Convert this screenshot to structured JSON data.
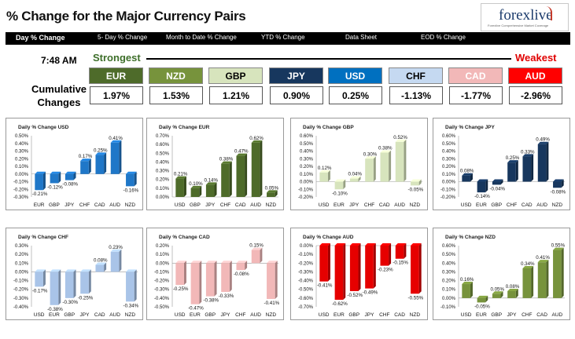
{
  "header": {
    "title": "% Change for the Major Currency Pairs",
    "logo_text": "forexlive",
    "logo_tagline": "Forexlive Comprehensive Market Coverage"
  },
  "tabs": [
    {
      "label": "Day % Change",
      "active": true
    },
    {
      "label": "5- Day % Change",
      "active": false
    },
    {
      "label": "Month to Date % Change",
      "active": false
    },
    {
      "label": "YTD % Change",
      "active": false
    },
    {
      "label": "Data Sheet",
      "active": false
    },
    {
      "label": "EOD % Change",
      "active": false
    }
  ],
  "summary": {
    "time": "7:48 AM",
    "cumulative_label_1": "Cumulative",
    "cumulative_label_2": "Changes",
    "strongest_label": "Strongest",
    "weakest_label": "Weakest",
    "rank": [
      {
        "code": "EUR",
        "value": "1.97%",
        "bg": "#4e6b2a",
        "fg": "#ffffff"
      },
      {
        "code": "NZD",
        "value": "1.53%",
        "bg": "#77933c",
        "fg": "#ffffff"
      },
      {
        "code": "GBP",
        "value": "1.21%",
        "bg": "#d7e4bd",
        "fg": "#000000"
      },
      {
        "code": "JPY",
        "value": "0.90%",
        "bg": "#17375e",
        "fg": "#ffffff"
      },
      {
        "code": "USD",
        "value": "0.25%",
        "bg": "#0070c0",
        "fg": "#ffffff"
      },
      {
        "code": "CHF",
        "value": "-1.13%",
        "bg": "#c5d9f1",
        "fg": "#000000"
      },
      {
        "code": "CAD",
        "value": "-1.77%",
        "bg": "#f2b8b8",
        "fg": "#ffffff"
      },
      {
        "code": "AUD",
        "value": "-2.96%",
        "bg": "#ff0000",
        "fg": "#ffffff"
      }
    ]
  },
  "chart_data": [
    {
      "type": "bar",
      "title": "Daily % Change USD",
      "categories": [
        "EUR",
        "GBP",
        "JPY",
        "CHF",
        "CAD",
        "AUD",
        "NZD"
      ],
      "values": [
        -0.21,
        -0.12,
        -0.08,
        0.17,
        0.25,
        0.41,
        -0.16
      ],
      "labels": [
        "-0.21%",
        "-0.12%",
        "-0.08%",
        "0.17%",
        "0.25%",
        "0.41%",
        "-0.16%"
      ],
      "ylim": [
        -0.3,
        0.5
      ],
      "ticks": [
        "0.50%",
        "0.40%",
        "0.30%",
        "0.20%",
        "0.10%",
        "0.00%",
        "-0.10%",
        "-0.20%",
        "-0.30%"
      ],
      "color": "#1f77c8"
    },
    {
      "type": "bar",
      "title": "Daily % Change EUR",
      "categories": [
        "USD",
        "GBP",
        "JPY",
        "CHF",
        "CAD",
        "AUD",
        "NZD"
      ],
      "values": [
        0.21,
        0.1,
        0.14,
        0.38,
        0.47,
        0.62,
        0.05
      ],
      "labels": [
        "0.21%",
        "0.10%",
        "0.14%",
        "0.38%",
        "0.47%",
        "0.62%",
        "0.05%"
      ],
      "ylim": [
        0.0,
        0.7
      ],
      "ticks": [
        "0.70%",
        "0.60%",
        "0.50%",
        "0.40%",
        "0.30%",
        "0.20%",
        "0.10%",
        "0.00%"
      ],
      "color": "#4e6b2a"
    },
    {
      "type": "bar",
      "title": "Daily % Change GBP",
      "categories": [
        "USD",
        "EUR",
        "JPY",
        "CHF",
        "CAD",
        "AUD",
        "NZD"
      ],
      "values": [
        0.12,
        -0.1,
        0.04,
        0.3,
        0.38,
        0.52,
        -0.05
      ],
      "labels": [
        "0.12%",
        "-0.10%",
        "0.04%",
        "0.30%",
        "0.38%",
        "0.52%",
        "-0.05%"
      ],
      "ylim": [
        -0.2,
        0.6
      ],
      "ticks": [
        "0.60%",
        "0.50%",
        "0.40%",
        "0.30%",
        "0.20%",
        "0.10%",
        "0.00%",
        "-0.10%",
        "-0.20%"
      ],
      "color": "#d7e4bd"
    },
    {
      "type": "bar",
      "title": "Daily % Change JPY",
      "categories": [
        "USD",
        "EUR",
        "GBP",
        "CHF",
        "CAD",
        "AUD",
        "NZD"
      ],
      "values": [
        0.08,
        -0.14,
        -0.04,
        0.25,
        0.33,
        0.49,
        -0.08
      ],
      "labels": [
        "0.08%",
        "-0.14%",
        "-0.04%",
        "0.25%",
        "0.33%",
        "0.49%",
        "-0.08%"
      ],
      "ylim": [
        -0.2,
        0.6
      ],
      "ticks": [
        "0.60%",
        "0.50%",
        "0.40%",
        "0.30%",
        "0.20%",
        "0.10%",
        "0.00%",
        "-0.10%",
        "-0.20%"
      ],
      "color": "#17375e"
    },
    {
      "type": "bar",
      "title": "Daily % Change CHF",
      "categories": [
        "USD",
        "EUR",
        "GBP",
        "JPY",
        "CAD",
        "AUD",
        "NZD"
      ],
      "values": [
        -0.17,
        -0.38,
        -0.3,
        -0.25,
        0.08,
        0.23,
        -0.34
      ],
      "labels": [
        "-0.17%",
        "-0.38%",
        "-0.30%",
        "-0.25%",
        "0.08%",
        "0.23%",
        "-0.34%"
      ],
      "ylim": [
        -0.4,
        0.3
      ],
      "ticks": [
        "0.30%",
        "0.20%",
        "0.10%",
        "0.00%",
        "-0.10%",
        "-0.20%",
        "-0.30%",
        "-0.40%"
      ],
      "color": "#a9c4e8"
    },
    {
      "type": "bar",
      "title": "Daily % Change CAD",
      "categories": [
        "USD",
        "EUR",
        "GBP",
        "JPY",
        "CHF",
        "AUD",
        "NZD"
      ],
      "values": [
        -0.25,
        -0.47,
        -0.38,
        -0.33,
        -0.08,
        0.15,
        -0.41
      ],
      "labels": [
        "-0.25%",
        "-0.47%",
        "-0.38%",
        "-0.33%",
        "-0.08%",
        "0.15%",
        "-0.41%"
      ],
      "ylim": [
        -0.5,
        0.2
      ],
      "ticks": [
        "0.20%",
        "0.10%",
        "0.00%",
        "-0.10%",
        "-0.20%",
        "-0.30%",
        "-0.40%",
        "-0.50%"
      ],
      "color": "#f2b8b8"
    },
    {
      "type": "bar",
      "title": "Daily % Change AUD",
      "categories": [
        "USD",
        "EUR",
        "GBP",
        "JPY",
        "CHF",
        "CAD",
        "NZD"
      ],
      "values": [
        -0.41,
        -0.62,
        -0.52,
        -0.49,
        -0.23,
        -0.15,
        -0.55
      ],
      "labels": [
        "-0.41%",
        "-0.62%",
        "-0.52%",
        "-0.49%",
        "-0.23%",
        "-0.15%",
        "-0.55%"
      ],
      "ylim": [
        -0.7,
        0.0
      ],
      "ticks": [
        "0.00%",
        "-0.10%",
        "-0.20%",
        "-0.30%",
        "-0.40%",
        "-0.50%",
        "-0.60%",
        "-0.70%"
      ],
      "color": "#e60000"
    },
    {
      "type": "bar",
      "title": "Daily % Change NZD",
      "categories": [
        "USD",
        "EUR",
        "GBP",
        "JPY",
        "CHF",
        "CAD",
        "AUD"
      ],
      "values": [
        0.16,
        -0.05,
        0.05,
        0.08,
        0.34,
        0.41,
        0.55
      ],
      "labels": [
        "0.16%",
        "-0.05%",
        "0.05%",
        "0.08%",
        "0.34%",
        "0.41%",
        "0.55%"
      ],
      "ylim": [
        -0.1,
        0.6
      ],
      "ticks": [
        "0.60%",
        "0.50%",
        "0.40%",
        "0.30%",
        "0.20%",
        "0.10%",
        "0.00%",
        "-0.10%"
      ],
      "color": "#77933c"
    }
  ]
}
